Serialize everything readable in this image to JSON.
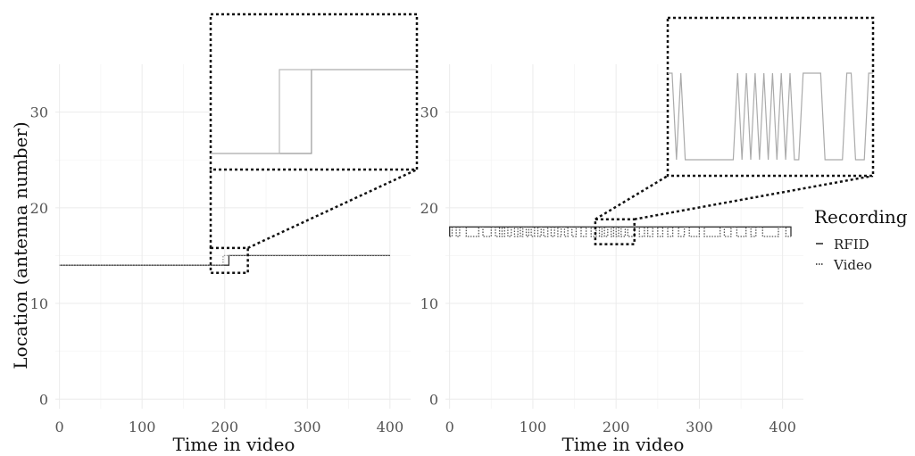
{
  "chart_data": [
    {
      "type": "line",
      "panel": "left",
      "xlabel": "Time in video",
      "ylabel": "Location (antenna number)",
      "xlim": [
        -5,
        425
      ],
      "ylim": [
        -1,
        35
      ],
      "x_ticks": [
        0,
        100,
        200,
        300,
        400
      ],
      "y_ticks": [
        0,
        10,
        20,
        30
      ],
      "grid": true,
      "series": [
        {
          "name": "RFID",
          "linestyle": "solid",
          "color": "#333333",
          "points": [
            [
              0,
              14
            ],
            [
              205,
              14
            ],
            [
              205,
              15
            ],
            [
              400,
              15
            ]
          ]
        },
        {
          "name": "Video",
          "linestyle": "dotted",
          "color": "#999999",
          "points": [
            [
              0,
              14
            ],
            [
              198,
              14
            ],
            [
              198,
              15
            ],
            [
              400,
              15
            ]
          ]
        }
      ],
      "zoom": {
        "x_range": [
          183,
          228
        ],
        "y_range": [
          13.2,
          15.8
        ]
      },
      "inset_series": [
        {
          "name": "RFID",
          "color": "#999999",
          "points": [
            [
              183,
              14
            ],
            [
              205,
              14
            ],
            [
              205,
              15
            ],
            [
              228,
              15
            ]
          ]
        },
        {
          "name": "Video",
          "color": "#bbbbbb",
          "points": [
            [
              183,
              14
            ],
            [
              198,
              14
            ],
            [
              198,
              15
            ],
            [
              228,
              15
            ]
          ]
        }
      ]
    },
    {
      "type": "line",
      "panel": "right",
      "xlabel": "Time in video",
      "ylabel": "",
      "xlim": [
        -5,
        425
      ],
      "ylim": [
        -1,
        35
      ],
      "x_ticks": [
        0,
        100,
        200,
        300,
        400
      ],
      "y_ticks": [
        0,
        10,
        20,
        30
      ],
      "grid": true,
      "series": [
        {
          "name": "RFID",
          "linestyle": "solid",
          "color": "#333333",
          "points": [
            [
              0,
              17
            ],
            [
              0,
              18
            ],
            [
              410,
              18
            ],
            [
              410,
              17
            ]
          ]
        },
        {
          "name": "Video",
          "linestyle": "dotted",
          "color": "#555555",
          "points": [
            [
              0,
              17
            ],
            [
              3,
              17
            ],
            [
              3,
              18
            ],
            [
              8,
              18
            ],
            [
              8,
              17
            ],
            [
              12,
              17
            ],
            [
              12,
              18
            ],
            [
              20,
              18
            ],
            [
              20,
              17
            ],
            [
              35,
              17
            ],
            [
              35,
              18
            ],
            [
              40,
              18
            ],
            [
              40,
              17
            ],
            [
              50,
              17
            ],
            [
              50,
              18
            ],
            [
              55,
              18
            ],
            [
              55,
              17
            ],
            [
              60,
              17
            ],
            [
              60,
              18
            ],
            [
              63,
              18
            ],
            [
              63,
              17
            ],
            [
              66,
              17
            ],
            [
              66,
              18
            ],
            [
              70,
              18
            ],
            [
              70,
              17
            ],
            [
              74,
              17
            ],
            [
              74,
              18
            ],
            [
              78,
              18
            ],
            [
              78,
              17
            ],
            [
              82,
              17
            ],
            [
              82,
              18
            ],
            [
              85,
              18
            ],
            [
              85,
              17
            ],
            [
              88,
              17
            ],
            [
              88,
              18
            ],
            [
              92,
              18
            ],
            [
              92,
              17
            ],
            [
              95,
              17
            ],
            [
              95,
              18
            ],
            [
              98,
              18
            ],
            [
              98,
              17
            ],
            [
              102,
              17
            ],
            [
              102,
              18
            ],
            [
              106,
              18
            ],
            [
              106,
              17
            ],
            [
              110,
              17
            ],
            [
              110,
              18
            ],
            [
              113,
              18
            ],
            [
              113,
              17
            ],
            [
              118,
              17
            ],
            [
              118,
              18
            ],
            [
              122,
              18
            ],
            [
              122,
              17
            ],
            [
              126,
              17
            ],
            [
              126,
              18
            ],
            [
              130,
              18
            ],
            [
              130,
              17
            ],
            [
              134,
              17
            ],
            [
              134,
              18
            ],
            [
              138,
              18
            ],
            [
              138,
              17
            ],
            [
              142,
              17
            ],
            [
              142,
              18
            ],
            [
              147,
              18
            ],
            [
              147,
              17
            ],
            [
              152,
              17
            ],
            [
              152,
              18
            ],
            [
              158,
              18
            ],
            [
              158,
              17
            ],
            [
              164,
              17
            ],
            [
              164,
              18
            ],
            [
              170,
              18
            ],
            [
              170,
              17
            ],
            [
              176,
              17
            ],
            [
              176,
              18
            ],
            [
              180,
              18
            ],
            [
              180,
              17
            ],
            [
              183,
              17
            ],
            [
              183,
              18
            ],
            [
              186,
              18
            ],
            [
              186,
              17
            ],
            [
              190,
              17
            ],
            [
              190,
              18
            ],
            [
              194,
              18
            ],
            [
              194,
              17
            ],
            [
              197,
              17
            ],
            [
              197,
              18
            ],
            [
              200,
              18
            ],
            [
              200,
              17
            ],
            [
              203,
              17
            ],
            [
              203,
              18
            ],
            [
              206,
              18
            ],
            [
              206,
              17
            ],
            [
              211,
              17
            ],
            [
              211,
              18
            ],
            [
              214,
              18
            ],
            [
              214,
              17
            ],
            [
              222,
              17
            ],
            [
              222,
              18
            ],
            [
              228,
              18
            ],
            [
              228,
              17
            ],
            [
              234,
              17
            ],
            [
              234,
              18
            ],
            [
              238,
              18
            ],
            [
              238,
              17
            ],
            [
              244,
              17
            ],
            [
              244,
              18
            ],
            [
              250,
              18
            ],
            [
              250,
              17
            ],
            [
              256,
              17
            ],
            [
              256,
              18
            ],
            [
              262,
              18
            ],
            [
              262,
              17
            ],
            [
              268,
              17
            ],
            [
              268,
              18
            ],
            [
              275,
              18
            ],
            [
              275,
              17
            ],
            [
              282,
              17
            ],
            [
              282,
              18
            ],
            [
              288,
              18
            ],
            [
              288,
              17
            ],
            [
              300,
              17
            ],
            [
              300,
              18
            ],
            [
              306,
              18
            ],
            [
              306,
              17
            ],
            [
              325,
              17
            ],
            [
              325,
              18
            ],
            [
              330,
              18
            ],
            [
              330,
              17
            ],
            [
              338,
              17
            ],
            [
              338,
              18
            ],
            [
              345,
              18
            ],
            [
              345,
              17
            ],
            [
              356,
              17
            ],
            [
              356,
              18
            ],
            [
              362,
              18
            ],
            [
              362,
              17
            ],
            [
              368,
              17
            ],
            [
              368,
              18
            ],
            [
              376,
              18
            ],
            [
              376,
              17
            ],
            [
              395,
              17
            ],
            [
              395,
              18
            ],
            [
              404,
              18
            ],
            [
              404,
              17
            ],
            [
              410,
              17
            ]
          ]
        }
      ],
      "zoom": {
        "x_range": [
          175,
          222
        ],
        "y_range": [
          16.2,
          18.8
        ]
      },
      "inset_series": [
        {
          "name": "Video",
          "color": "#aaaaaa",
          "points": [
            [
              175,
              18
            ],
            [
              176,
              18
            ],
            [
              177,
              17
            ],
            [
              178,
              18
            ],
            [
              179,
              17
            ],
            [
              190,
              17
            ],
            [
              191,
              18
            ],
            [
              192,
              17
            ],
            [
              193,
              18
            ],
            [
              194,
              17
            ],
            [
              195,
              18
            ],
            [
              196,
              17
            ],
            [
              197,
              18
            ],
            [
              198,
              17
            ],
            [
              199,
              18
            ],
            [
              200,
              17
            ],
            [
              201,
              18
            ],
            [
              202,
              17
            ],
            [
              203,
              18
            ],
            [
              204,
              17
            ],
            [
              205,
              17
            ],
            [
              206,
              18
            ],
            [
              210,
              18
            ],
            [
              211,
              17
            ],
            [
              215,
              17
            ],
            [
              216,
              18
            ],
            [
              217,
              18
            ],
            [
              218,
              17
            ],
            [
              220,
              17
            ],
            [
              221,
              18
            ],
            [
              222,
              18
            ]
          ]
        }
      ]
    }
  ],
  "legend": {
    "title": "Recording",
    "position": "right",
    "items": [
      {
        "label": "RFID",
        "linestyle": "solid"
      },
      {
        "label": "Video",
        "linestyle": "dotted"
      }
    ]
  },
  "colors": {
    "grid": "#ebebeb",
    "line": "#333333",
    "inset_line": "#999999"
  }
}
